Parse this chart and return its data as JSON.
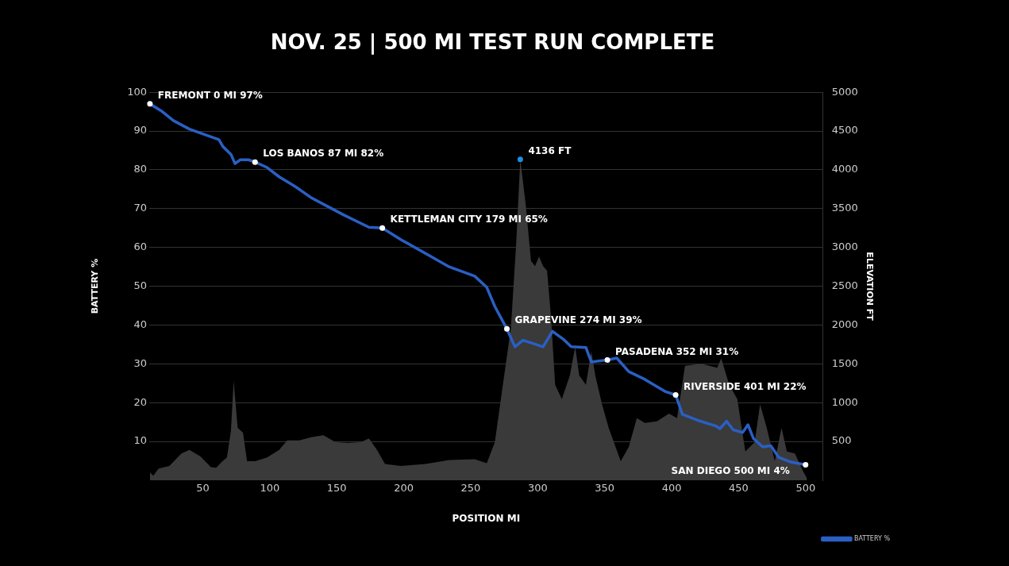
{
  "chart_data": {
    "type": "line",
    "title": "NOV. 25 | 500 MI TEST RUN COMPLETE",
    "xlabel": "POSITION MI",
    "ylabel": "BATTERY %",
    "y2label": "ELEVATION FT",
    "xlim": [
      10,
      513
    ],
    "xticks": [
      50,
      100,
      150,
      200,
      250,
      300,
      350,
      400,
      450,
      500
    ],
    "ylim": [
      0,
      100
    ],
    "yticks": [
      10,
      20,
      30,
      40,
      50,
      60,
      70,
      80,
      90,
      100
    ],
    "y2lim": [
      0,
      5000
    ],
    "y2ticks": [
      500,
      1000,
      1500,
      2000,
      2500,
      3000,
      3500,
      4000,
      4500,
      5000
    ],
    "grid": "y",
    "legend": "bottom right",
    "series": [
      {
        "type": "area",
        "axis": "y2",
        "color": "#3a3a3a",
        "x": [
          10.5,
          13,
          17,
          25,
          34,
          40,
          48,
          56,
          60,
          64,
          68,
          71,
          73,
          76,
          80,
          83,
          89,
          98,
          107,
          113,
          122,
          131,
          140,
          149,
          158,
          168,
          174,
          180,
          186,
          198,
          216,
          234,
          253,
          262,
          268,
          274,
          280,
          284,
          287,
          291,
          295,
          298,
          301,
          304,
          307,
          310,
          313,
          318,
          324,
          328,
          331,
          336,
          340,
          343,
          348,
          353,
          362,
          368,
          374,
          380,
          389,
          398,
          404,
          410,
          422,
          434,
          437,
          443,
          449,
          455,
          462,
          466,
          471,
          477,
          482,
          486,
          492,
          498,
          501
        ],
        "values": [
          100,
          60,
          150,
          185,
          345,
          390,
          310,
          170,
          160,
          235,
          295,
          640,
          1280,
          675,
          615,
          245,
          245,
          295,
          390,
          515,
          515,
          555,
          580,
          490,
          480,
          490,
          540,
          390,
          210,
          185,
          210,
          260,
          270,
          220,
          490,
          1230,
          1965,
          3070,
          4136,
          3560,
          2825,
          2760,
          2885,
          2760,
          2700,
          2090,
          1230,
          1045,
          1350,
          1720,
          1350,
          1230,
          1660,
          1350,
          980,
          675,
          245,
          430,
          800,
          740,
          760,
          860,
          800,
          1475,
          1500,
          1450,
          1570,
          1230,
          1045,
          370,
          490,
          980,
          675,
          245,
          675,
          370,
          345,
          120,
          25
        ],
        "value_labels": [
          null,
          null,
          null,
          null,
          null,
          null,
          null,
          null,
          null,
          null,
          null,
          null,
          null,
          null,
          null,
          null,
          null,
          null,
          null,
          null,
          null,
          null,
          null,
          null,
          null,
          null,
          null,
          null,
          null,
          null,
          null,
          null,
          null,
          null,
          null,
          null,
          null,
          null,
          "4136 FT",
          null,
          null,
          null,
          null,
          null,
          null,
          null,
          null,
          null,
          null,
          null,
          null,
          null,
          null,
          null,
          null,
          null,
          null,
          null,
          null,
          null,
          null,
          null,
          null,
          null,
          null,
          null,
          null,
          null,
          null,
          null,
          null,
          null,
          null,
          null,
          null,
          null,
          null,
          null,
          null
        ]
      },
      {
        "type": "line",
        "name": "BATTERY %",
        "color": "#2a5fc4",
        "x": [
          10.5,
          19,
          28,
          40,
          52,
          62,
          65,
          71,
          74,
          78,
          84,
          89,
          98,
          107,
          119,
          131,
          143,
          155,
          174,
          184,
          198,
          216,
          234,
          253,
          262,
          268,
          277,
          283,
          289,
          295,
          304,
          311,
          319,
          325,
          336,
          340,
          352,
          359,
          368,
          380,
          395,
          403,
          408,
          419,
          433,
          436,
          441,
          446,
          453,
          457,
          461,
          468,
          474,
          480,
          489,
          500
        ],
        "values": [
          97,
          95.2,
          92.7,
          90.5,
          89,
          87.8,
          86,
          84,
          81.6,
          82.6,
          82.6,
          82,
          80.6,
          78.2,
          75.7,
          72.8,
          70.6,
          68.4,
          65.2,
          65,
          62,
          58.5,
          55,
          52.6,
          49.7,
          44.8,
          39,
          34.4,
          36.1,
          35.4,
          34.4,
          38.4,
          36.4,
          34.4,
          34.2,
          30.5,
          31,
          31.5,
          28,
          26,
          22.9,
          22,
          17,
          15.5,
          14,
          13.3,
          15.2,
          13,
          12.3,
          14.3,
          10.8,
          8.6,
          8.9,
          5.9,
          4.7,
          4
        ],
        "value_labels": [
          "FREMONT 0 MI 97%",
          null,
          null,
          null,
          null,
          null,
          null,
          null,
          null,
          null,
          null,
          "LOS BANOS 87 MI 82%",
          null,
          null,
          null,
          null,
          null,
          null,
          null,
          "KETTLEMAN CITY 179 MI 65%",
          null,
          null,
          null,
          null,
          null,
          null,
          "GRAPEVINE 274 MI 39%",
          null,
          null,
          null,
          null,
          null,
          null,
          null,
          null,
          null,
          "PASADENA 352 MI 31%",
          null,
          null,
          null,
          null,
          "RIVERSIDE 401 MI 22%",
          null,
          null,
          null,
          null,
          null,
          null,
          null,
          null,
          null,
          null,
          null,
          null,
          null,
          "SAN DIEGO 500 MI 4%"
        ]
      }
    ]
  }
}
